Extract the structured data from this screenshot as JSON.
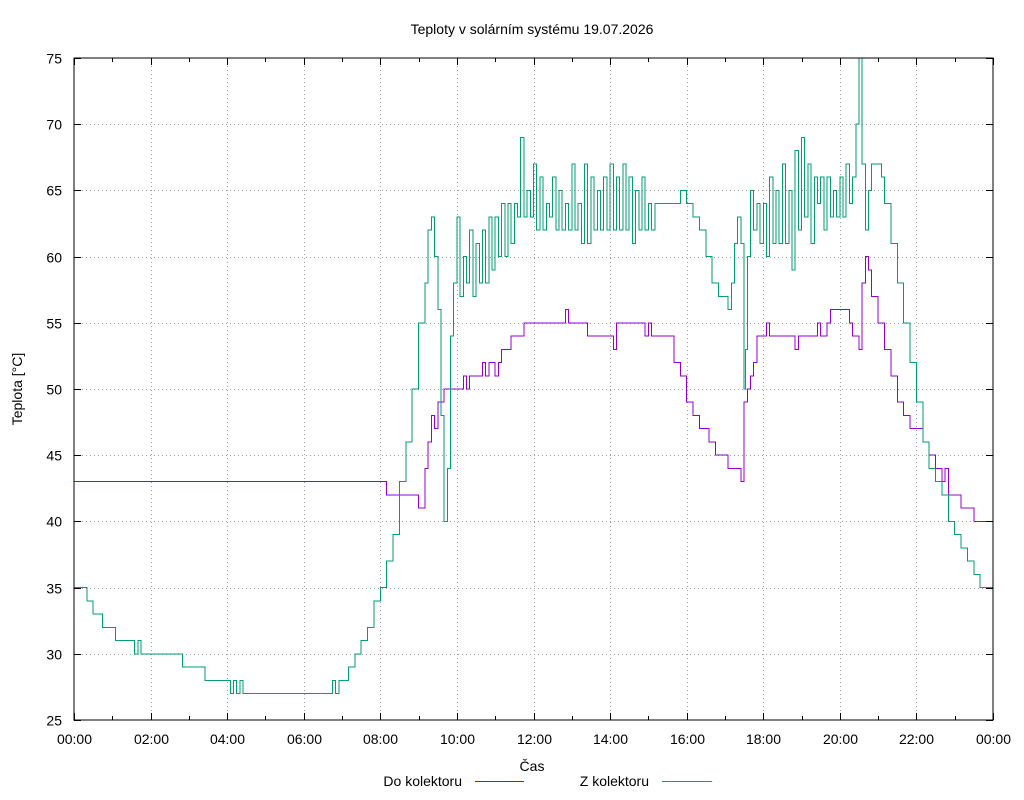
{
  "chart_data": {
    "type": "line",
    "title": "Teploty v solárním systému 19.07.2026",
    "xlabel": "Čas",
    "ylabel": "Teplota [°C]",
    "xlim": [
      "00:00",
      "24:00"
    ],
    "ylim": [
      25,
      75
    ],
    "x_ticks": [
      "00:00",
      "02:00",
      "04:00",
      "06:00",
      "08:00",
      "10:00",
      "12:00",
      "14:00",
      "16:00",
      "18:00",
      "20:00",
      "22:00",
      "00:00"
    ],
    "y_ticks": [
      25,
      30,
      35,
      40,
      45,
      50,
      55,
      60,
      65,
      70,
      75
    ],
    "grid": true,
    "legend_position": "bottom-center",
    "series": [
      {
        "name": "Do kolektoru",
        "color": "#9400d3",
        "points": [
          [
            "00:00",
            43
          ],
          [
            "08:10",
            43
          ],
          [
            "08:10",
            42
          ],
          [
            "09:00",
            42
          ],
          [
            "09:00",
            41
          ],
          [
            "09:10",
            41
          ],
          [
            "09:10",
            44
          ],
          [
            "09:15",
            46
          ],
          [
            "09:20",
            48
          ],
          [
            "09:25",
            47
          ],
          [
            "09:30",
            49
          ],
          [
            "09:40",
            50
          ],
          [
            "10:05",
            50
          ],
          [
            "10:10",
            51
          ],
          [
            "10:15",
            50
          ],
          [
            "10:20",
            51
          ],
          [
            "10:35",
            51
          ],
          [
            "10:40",
            52
          ],
          [
            "10:45",
            51
          ],
          [
            "10:50",
            52
          ],
          [
            "11:00",
            51
          ],
          [
            "11:05",
            52
          ],
          [
            "11:10",
            53
          ],
          [
            "11:20",
            53
          ],
          [
            "11:25",
            54
          ],
          [
            "11:35",
            54
          ],
          [
            "11:45",
            55
          ],
          [
            "12:45",
            55
          ],
          [
            "12:50",
            56
          ],
          [
            "12:55",
            55
          ],
          [
            "13:20",
            55
          ],
          [
            "13:25",
            54
          ],
          [
            "14:00",
            54
          ],
          [
            "14:05",
            53
          ],
          [
            "14:10",
            55
          ],
          [
            "14:50",
            55
          ],
          [
            "14:55",
            54
          ],
          [
            "15:00",
            55
          ],
          [
            "15:05",
            54
          ],
          [
            "15:30",
            54
          ],
          [
            "15:40",
            52
          ],
          [
            "15:50",
            51
          ],
          [
            "16:00",
            49
          ],
          [
            "16:10",
            48
          ],
          [
            "16:20",
            47
          ],
          [
            "16:35",
            46
          ],
          [
            "16:45",
            45
          ],
          [
            "17:05",
            44
          ],
          [
            "17:25",
            44
          ],
          [
            "17:25",
            43
          ],
          [
            "17:30",
            49
          ],
          [
            "17:35",
            50
          ],
          [
            "17:40",
            51
          ],
          [
            "17:45",
            52
          ],
          [
            "17:50",
            54
          ],
          [
            "18:00",
            54
          ],
          [
            "18:05",
            55
          ],
          [
            "18:10",
            54
          ],
          [
            "18:45",
            54
          ],
          [
            "18:50",
            53
          ],
          [
            "18:55",
            54
          ],
          [
            "19:20",
            54
          ],
          [
            "19:25",
            55
          ],
          [
            "19:30",
            54
          ],
          [
            "19:40",
            55
          ],
          [
            "19:45",
            56
          ],
          [
            "20:15",
            56
          ],
          [
            "20:15",
            55
          ],
          [
            "20:20",
            54
          ],
          [
            "20:30",
            53
          ],
          [
            "20:35",
            58
          ],
          [
            "20:40",
            60
          ],
          [
            "20:45",
            59
          ],
          [
            "20:50",
            57
          ],
          [
            "21:00",
            55
          ],
          [
            "21:10",
            53
          ],
          [
            "21:20",
            51
          ],
          [
            "21:30",
            49
          ],
          [
            "21:40",
            48
          ],
          [
            "21:50",
            47
          ],
          [
            "22:05",
            47
          ],
          [
            "22:10",
            46
          ],
          [
            "22:20",
            45
          ],
          [
            "22:30",
            44
          ],
          [
            "22:40",
            43
          ],
          [
            "22:45",
            44
          ],
          [
            "22:50",
            42
          ],
          [
            "23:00",
            42
          ],
          [
            "23:10",
            41
          ],
          [
            "23:20",
            41
          ],
          [
            "23:30",
            40
          ],
          [
            "24:00",
            40
          ]
        ]
      },
      {
        "name": "Z kolektoru",
        "color": "#009e73",
        "points": [
          [
            "00:00",
            35
          ],
          [
            "00:20",
            35
          ],
          [
            "00:20",
            34
          ],
          [
            "00:30",
            34
          ],
          [
            "00:30",
            33
          ],
          [
            "00:45",
            33
          ],
          [
            "00:45",
            32
          ],
          [
            "01:05",
            32
          ],
          [
            "01:05",
            31
          ],
          [
            "01:20",
            31
          ],
          [
            "01:30",
            31
          ],
          [
            "01:35",
            30
          ],
          [
            "01:40",
            31
          ],
          [
            "01:45",
            30
          ],
          [
            "02:50",
            30
          ],
          [
            "02:50",
            29
          ],
          [
            "03:25",
            29
          ],
          [
            "03:25",
            28
          ],
          [
            "04:00",
            28
          ],
          [
            "04:05",
            27
          ],
          [
            "04:10",
            28
          ],
          [
            "04:15",
            27
          ],
          [
            "04:20",
            28
          ],
          [
            "04:25",
            27
          ],
          [
            "06:40",
            27
          ],
          [
            "06:45",
            28
          ],
          [
            "06:50",
            27
          ],
          [
            "06:55",
            28
          ],
          [
            "07:05",
            28
          ],
          [
            "07:10",
            29
          ],
          [
            "07:20",
            30
          ],
          [
            "07:30",
            31
          ],
          [
            "07:40",
            32
          ],
          [
            "07:50",
            34
          ],
          [
            "08:00",
            35
          ],
          [
            "08:10",
            37
          ],
          [
            "08:20",
            39
          ],
          [
            "08:30",
            43
          ],
          [
            "08:40",
            46
          ],
          [
            "08:50",
            50
          ],
          [
            "09:00",
            55
          ],
          [
            "09:10",
            58
          ],
          [
            "09:15",
            62
          ],
          [
            "09:20",
            63
          ],
          [
            "09:25",
            60
          ],
          [
            "09:30",
            56
          ],
          [
            "09:35",
            48
          ],
          [
            "09:40",
            40
          ],
          [
            "09:45",
            44
          ],
          [
            "09:50",
            54
          ],
          [
            "09:55",
            58
          ],
          [
            "10:00",
            63
          ],
          [
            "10:05",
            57
          ],
          [
            "10:10",
            60
          ],
          [
            "10:15",
            58
          ],
          [
            "10:20",
            62
          ],
          [
            "10:25",
            57
          ],
          [
            "10:30",
            61
          ],
          [
            "10:35",
            58
          ],
          [
            "10:40",
            62
          ],
          [
            "10:45",
            58
          ],
          [
            "10:50",
            63
          ],
          [
            "10:55",
            59
          ],
          [
            "11:00",
            63
          ],
          [
            "11:05",
            60
          ],
          [
            "11:10",
            64
          ],
          [
            "11:15",
            60
          ],
          [
            "11:20",
            64
          ],
          [
            "11:25",
            61
          ],
          [
            "11:30",
            64
          ],
          [
            "11:35",
            63
          ],
          [
            "11:40",
            69
          ],
          [
            "11:45",
            63
          ],
          [
            "11:50",
            65
          ],
          [
            "11:55",
            63
          ],
          [
            "12:00",
            67
          ],
          [
            "12:05",
            62
          ],
          [
            "12:10",
            66
          ],
          [
            "12:15",
            62
          ],
          [
            "12:20",
            64
          ],
          [
            "12:25",
            63
          ],
          [
            "12:30",
            66
          ],
          [
            "12:35",
            62
          ],
          [
            "12:40",
            65
          ],
          [
            "12:45",
            62
          ],
          [
            "12:50",
            64
          ],
          [
            "12:55",
            62
          ],
          [
            "13:00",
            67
          ],
          [
            "13:05",
            62
          ],
          [
            "13:10",
            64
          ],
          [
            "13:15",
            61
          ],
          [
            "13:20",
            67
          ],
          [
            "13:25",
            61
          ],
          [
            "13:30",
            66
          ],
          [
            "13:35",
            62
          ],
          [
            "13:40",
            65
          ],
          [
            "13:45",
            62
          ],
          [
            "13:50",
            66
          ],
          [
            "13:55",
            62
          ],
          [
            "14:00",
            67
          ],
          [
            "14:05",
            62
          ],
          [
            "14:10",
            66
          ],
          [
            "14:15",
            62
          ],
          [
            "14:20",
            67
          ],
          [
            "14:25",
            62
          ],
          [
            "14:30",
            66
          ],
          [
            "14:35",
            61
          ],
          [
            "14:40",
            65
          ],
          [
            "14:45",
            62
          ],
          [
            "14:50",
            66
          ],
          [
            "14:55",
            62
          ],
          [
            "15:00",
            64
          ],
          [
            "15:05",
            62
          ],
          [
            "15:10",
            64
          ],
          [
            "15:20",
            64
          ],
          [
            "15:30",
            64
          ],
          [
            "15:40",
            64
          ],
          [
            "15:50",
            65
          ],
          [
            "16:00",
            64
          ],
          [
            "16:10",
            63
          ],
          [
            "16:20",
            62
          ],
          [
            "16:30",
            60
          ],
          [
            "16:40",
            58
          ],
          [
            "16:50",
            57
          ],
          [
            "17:00",
            57
          ],
          [
            "17:05",
            56
          ],
          [
            "17:10",
            58
          ],
          [
            "17:15",
            61
          ],
          [
            "17:20",
            63
          ],
          [
            "17:25",
            61
          ],
          [
            "17:30",
            50
          ],
          [
            "17:32",
            53
          ],
          [
            "17:35",
            60
          ],
          [
            "17:40",
            65
          ],
          [
            "17:45",
            62
          ],
          [
            "17:50",
            64
          ],
          [
            "17:55",
            61
          ],
          [
            "18:00",
            64
          ],
          [
            "18:05",
            60
          ],
          [
            "18:10",
            66
          ],
          [
            "18:15",
            61
          ],
          [
            "18:20",
            65
          ],
          [
            "18:25",
            61
          ],
          [
            "18:30",
            67
          ],
          [
            "18:35",
            61
          ],
          [
            "18:40",
            65
          ],
          [
            "18:45",
            59
          ],
          [
            "18:50",
            68
          ],
          [
            "18:55",
            62
          ],
          [
            "19:00",
            69
          ],
          [
            "19:05",
            63
          ],
          [
            "19:10",
            67
          ],
          [
            "19:15",
            61
          ],
          [
            "19:20",
            66
          ],
          [
            "19:25",
            64
          ],
          [
            "19:30",
            66
          ],
          [
            "19:35",
            62
          ],
          [
            "19:40",
            66
          ],
          [
            "19:45",
            63
          ],
          [
            "19:50",
            65
          ],
          [
            "19:55",
            63
          ],
          [
            "20:00",
            66
          ],
          [
            "20:05",
            63
          ],
          [
            "20:10",
            67
          ],
          [
            "20:15",
            64
          ],
          [
            "20:20",
            66
          ],
          [
            "20:25",
            70
          ],
          [
            "20:30",
            75
          ],
          [
            "20:35",
            67
          ],
          [
            "20:40",
            62
          ],
          [
            "20:45",
            65
          ],
          [
            "20:50",
            67
          ],
          [
            "21:00",
            67
          ],
          [
            "21:05",
            66
          ],
          [
            "21:10",
            64
          ],
          [
            "21:20",
            61
          ],
          [
            "21:30",
            58
          ],
          [
            "21:40",
            55
          ],
          [
            "21:50",
            52
          ],
          [
            "22:00",
            49
          ],
          [
            "22:10",
            46
          ],
          [
            "22:20",
            44
          ],
          [
            "22:30",
            43
          ],
          [
            "22:40",
            42
          ],
          [
            "22:50",
            40
          ],
          [
            "23:00",
            39
          ],
          [
            "23:10",
            38
          ],
          [
            "23:20",
            37
          ],
          [
            "23:30",
            36
          ],
          [
            "23:40",
            35
          ],
          [
            "24:00",
            35
          ]
        ]
      }
    ]
  }
}
